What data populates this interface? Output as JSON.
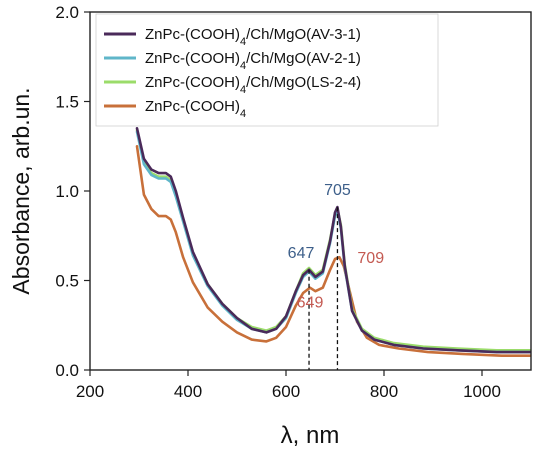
{
  "chart_data": {
    "type": "line",
    "xlabel": "λ, nm",
    "ylabel": "Absorbance, arb.un.",
    "xlim": [
      200,
      1100
    ],
    "ylim": [
      0.0,
      2.0
    ],
    "xticks": [
      200,
      400,
      600,
      800,
      1000
    ],
    "xtick_labels": [
      "200",
      "400",
      "600",
      "800",
      "1000"
    ],
    "yticks": [
      0.0,
      0.5,
      1.0,
      1.5,
      2.0
    ],
    "ytick_labels": [
      "0.0",
      "0.5",
      "1.0",
      "1.5",
      "2.0"
    ],
    "grid": false,
    "legend_position": "top",
    "series": [
      {
        "name": "ZnPc-(COOH)4/Ch/MgO(AV-3-1)",
        "legend_parts": [
          [
            "ZnPc-(COOH)",
            false
          ],
          [
            "4",
            true
          ],
          [
            "/Ch/MgO(AV-3-1)",
            false
          ]
        ],
        "color": "#4a2a5a",
        "x": [
          296,
          310,
          325,
          340,
          355,
          365,
          375,
          390,
          410,
          440,
          470,
          500,
          530,
          560,
          580,
          600,
          620,
          635,
          647,
          660,
          675,
          690,
          700,
          705,
          712,
          720,
          735,
          755,
          780,
          820,
          880,
          950,
          1030,
          1100
        ],
        "y": [
          1.35,
          1.18,
          1.12,
          1.1,
          1.1,
          1.08,
          1.0,
          0.85,
          0.66,
          0.48,
          0.37,
          0.29,
          0.23,
          0.21,
          0.23,
          0.3,
          0.44,
          0.53,
          0.56,
          0.52,
          0.55,
          0.72,
          0.88,
          0.91,
          0.8,
          0.58,
          0.33,
          0.22,
          0.17,
          0.14,
          0.12,
          0.11,
          0.1,
          0.1
        ]
      },
      {
        "name": "ZnPc-(COOH)4/Ch/MgO(AV-2-1)",
        "legend_parts": [
          [
            "ZnPc-(COOH)",
            false
          ],
          [
            "4",
            true
          ],
          [
            "/Ch/MgO(AV-2-1)",
            false
          ]
        ],
        "color": "#5fb6c9",
        "x": [
          296,
          310,
          325,
          340,
          355,
          365,
          375,
          390,
          410,
          440,
          470,
          500,
          530,
          560,
          580,
          600,
          620,
          635,
          647,
          660,
          675,
          690,
          700,
          705,
          712,
          720,
          735,
          755,
          780,
          820,
          880,
          950,
          1030,
          1100
        ],
        "y": [
          1.33,
          1.15,
          1.09,
          1.07,
          1.07,
          1.05,
          0.97,
          0.83,
          0.64,
          0.47,
          0.36,
          0.28,
          0.23,
          0.21,
          0.23,
          0.29,
          0.43,
          0.52,
          0.55,
          0.51,
          0.54,
          0.71,
          0.86,
          0.89,
          0.79,
          0.57,
          0.33,
          0.22,
          0.17,
          0.14,
          0.12,
          0.11,
          0.1,
          0.1
        ]
      },
      {
        "name": "ZnPc-(COOH)4/Ch/MgO(LS-2-4)",
        "legend_parts": [
          [
            "ZnPc-(COOH)",
            false
          ],
          [
            "4",
            true
          ],
          [
            "/Ch/MgO(LS-2-4)",
            false
          ]
        ],
        "color": "#9bdc6a",
        "x": [
          296,
          310,
          325,
          340,
          355,
          365,
          375,
          390,
          410,
          440,
          470,
          500,
          530,
          560,
          580,
          600,
          620,
          635,
          647,
          660,
          675,
          690,
          700,
          705,
          712,
          720,
          735,
          755,
          780,
          820,
          880,
          950,
          1030,
          1100
        ],
        "y": [
          1.34,
          1.16,
          1.1,
          1.08,
          1.08,
          1.06,
          0.98,
          0.84,
          0.65,
          0.48,
          0.37,
          0.29,
          0.24,
          0.22,
          0.24,
          0.3,
          0.44,
          0.54,
          0.57,
          0.53,
          0.56,
          0.73,
          0.87,
          0.9,
          0.81,
          0.59,
          0.34,
          0.23,
          0.18,
          0.15,
          0.13,
          0.12,
          0.11,
          0.11
        ]
      },
      {
        "name": "ZnPc-(COOH)4",
        "legend_parts": [
          [
            "ZnPc-(COOH)",
            false
          ],
          [
            "4",
            true
          ]
        ],
        "color": "#c8703a",
        "x": [
          296,
          310,
          325,
          340,
          355,
          365,
          375,
          390,
          410,
          440,
          470,
          500,
          530,
          560,
          580,
          600,
          620,
          635,
          649,
          660,
          675,
          690,
          700,
          709,
          718,
          730,
          745,
          765,
          790,
          830,
          890,
          960,
          1040,
          1100
        ],
        "y": [
          1.25,
          0.98,
          0.9,
          0.86,
          0.86,
          0.84,
          0.77,
          0.63,
          0.49,
          0.35,
          0.27,
          0.21,
          0.17,
          0.16,
          0.18,
          0.24,
          0.36,
          0.43,
          0.46,
          0.44,
          0.46,
          0.56,
          0.62,
          0.63,
          0.58,
          0.44,
          0.27,
          0.18,
          0.14,
          0.12,
          0.1,
          0.09,
          0.08,
          0.08
        ]
      }
    ],
    "annotations": [
      {
        "text": "705",
        "x": 705,
        "y": 0.91,
        "color": "#3d5f8a",
        "anchor": "above"
      },
      {
        "text": "647",
        "x": 647,
        "y": 0.56,
        "color": "#3d5f8a",
        "anchor": "above-left"
      },
      {
        "text": "709",
        "x": 709,
        "y": 0.63,
        "color": "#c45a52",
        "anchor": "right"
      },
      {
        "text": "649",
        "x": 649,
        "y": 0.46,
        "color": "#c45a52",
        "anchor": "below"
      }
    ],
    "dashed_guides": [
      {
        "x": 647,
        "y_top": 0.56
      },
      {
        "x": 705,
        "y_top": 0.91
      }
    ]
  }
}
